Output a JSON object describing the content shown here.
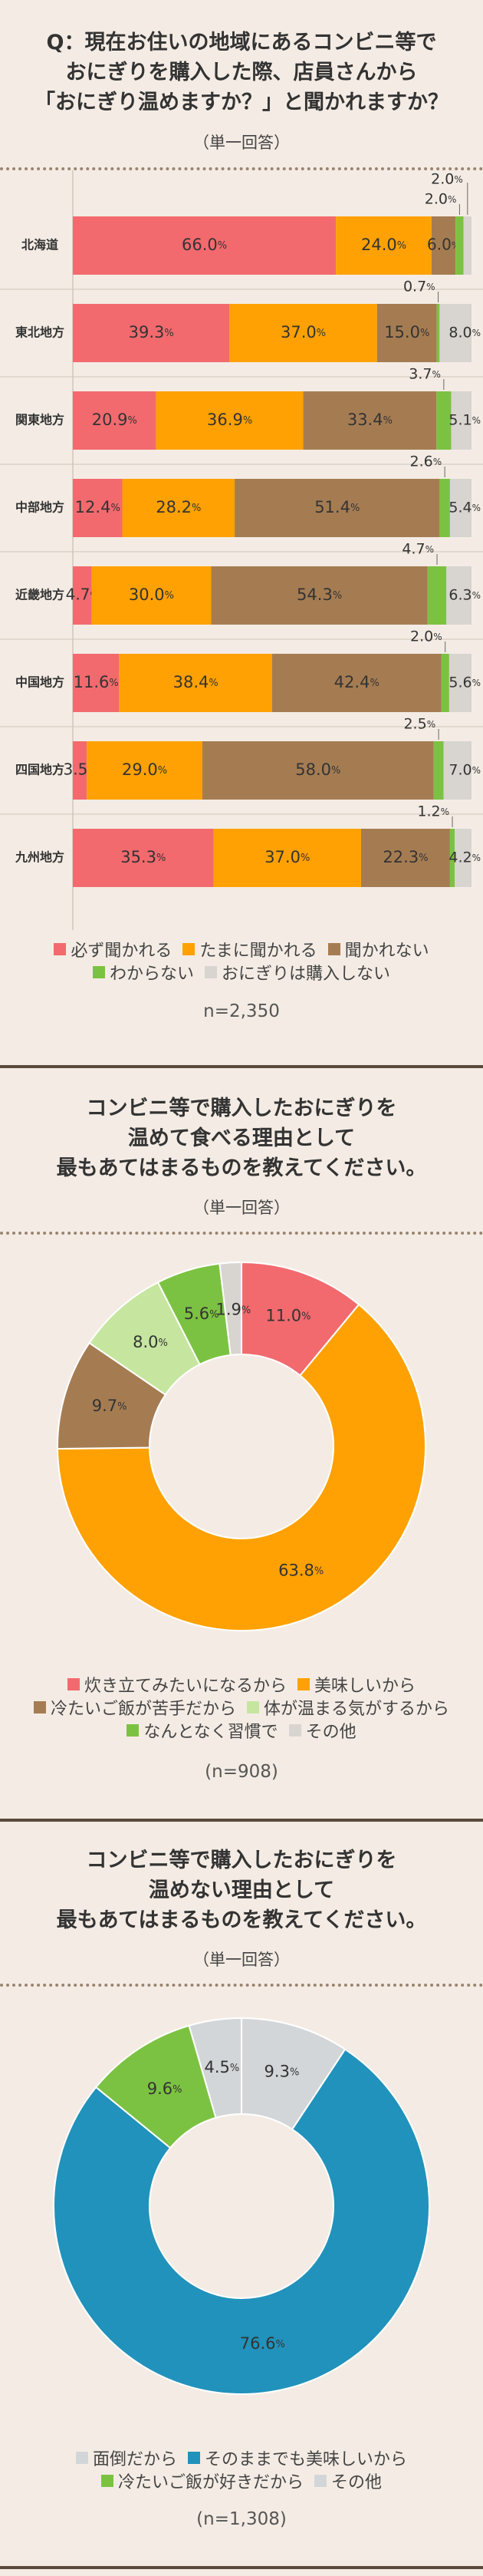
{
  "section1": {
    "title_lines": [
      "Q：現在お住いの地域にあるコンビニ等で",
      "おにぎりを購入した際、店員さんから",
      "「おにぎり温めますか？」と聞かれますか？"
    ],
    "subtitle": "（単一回答）",
    "n_text": "n=2,350"
  },
  "section2": {
    "title_lines": [
      "コンビニ等で購入したおにぎりを",
      "温めて食べる理由として",
      "最もあてはまるものを教えてください。"
    ],
    "subtitle": "（単一回答）",
    "n_text": "(n=908)"
  },
  "section3": {
    "title_lines": [
      "コンビニ等で購入したおにぎりを",
      "温めない理由として",
      "最もあてはまるものを教えてください。"
    ],
    "subtitle": "（単一回答）",
    "n_text": "(n=1,308)"
  },
  "colors": {
    "red": "#f26a6e",
    "orange": "#ffa102",
    "brown": "#a57c52",
    "green": "#7cc242",
    "gray": "#d8d4d0",
    "pink": "#f26a6e",
    "lightgreen": "#c6e6a0",
    "blue": "#2192bb",
    "lightgray": "#d3d6d8"
  },
  "chart_data": [
    {
      "type": "bar",
      "orientation": "horizontal-stacked-100",
      "categories": [
        "北海道",
        "東北地方",
        "関東地方",
        "中部地方",
        "近畿地方",
        "中国地方",
        "四国地方",
        "九州地方"
      ],
      "series": [
        {
          "name": "必ず聞かれる",
          "color": "#f26a6e",
          "values": [
            66.0,
            39.3,
            20.9,
            12.4,
            4.7,
            11.6,
            3.5,
            35.3
          ]
        },
        {
          "name": "たまに聞かれる",
          "color": "#ffa102",
          "values": [
            24.0,
            37.0,
            36.9,
            28.2,
            30.0,
            38.4,
            29.0,
            37.0
          ]
        },
        {
          "name": "聞かれない",
          "color": "#a57c52",
          "values": [
            6.0,
            15.0,
            33.4,
            51.4,
            54.3,
            42.4,
            58.0,
            22.3
          ]
        },
        {
          "name": "わからない",
          "color": "#7cc242",
          "values": [
            2.0,
            0.7,
            3.7,
            2.6,
            4.7,
            2.0,
            2.5,
            1.2
          ]
        },
        {
          "name": "おにぎりは購入しない",
          "color": "#d8d4d0",
          "values": [
            2.0,
            8.0,
            5.1,
            5.4,
            6.3,
            5.6,
            7.0,
            4.2
          ]
        }
      ],
      "label_texts": [
        [
          "66.0",
          "24.0",
          "6.0",
          "2.0",
          "2.0"
        ],
        [
          "39.3",
          "37.0",
          "15.0",
          "0.7",
          "8.0"
        ],
        [
          "20.9",
          "36.9",
          "33.4",
          "3.7",
          "5.1"
        ],
        [
          "12.4",
          "28.2",
          "51.4",
          "2.6",
          "5.4"
        ],
        [
          "4.7",
          "30.0",
          "54.3",
          "4.7",
          "6.3"
        ],
        [
          "11.6",
          "38.4",
          "42.4",
          "2.0",
          "5.6"
        ],
        [
          "3.5",
          "29.0",
          "58.0",
          "2.5",
          "7.0"
        ],
        [
          "35.3",
          "37.0",
          "22.3",
          "1.2",
          "4.2"
        ]
      ],
      "unit": "%",
      "legend": "bottom"
    },
    {
      "type": "pie",
      "style": "donut",
      "categories": [
        "炊き立てみたいになるから",
        "美味しいから",
        "冷たいご飯が苦手だから",
        "体が温まる気がするから",
        "なんとなく習慣で",
        "その他"
      ],
      "colors": [
        "#f26a6e",
        "#ffa102",
        "#a57c52",
        "#c6e6a0",
        "#7cc242",
        "#d8d4d0"
      ],
      "values": [
        11.0,
        63.8,
        9.7,
        8.0,
        5.6,
        1.9
      ],
      "unit": "%",
      "legend": "bottom"
    },
    {
      "type": "pie",
      "style": "donut",
      "categories": [
        "面倒だから",
        "そのままでも美味しいから",
        "冷たいご飯が好きだから",
        "その他"
      ],
      "colors": [
        "#d3d6d8",
        "#2192bb",
        "#7cc242",
        "#d3d6d8"
      ],
      "values": [
        9.3,
        76.6,
        9.6,
        4.5
      ],
      "unit": "%",
      "legend": "bottom"
    }
  ]
}
